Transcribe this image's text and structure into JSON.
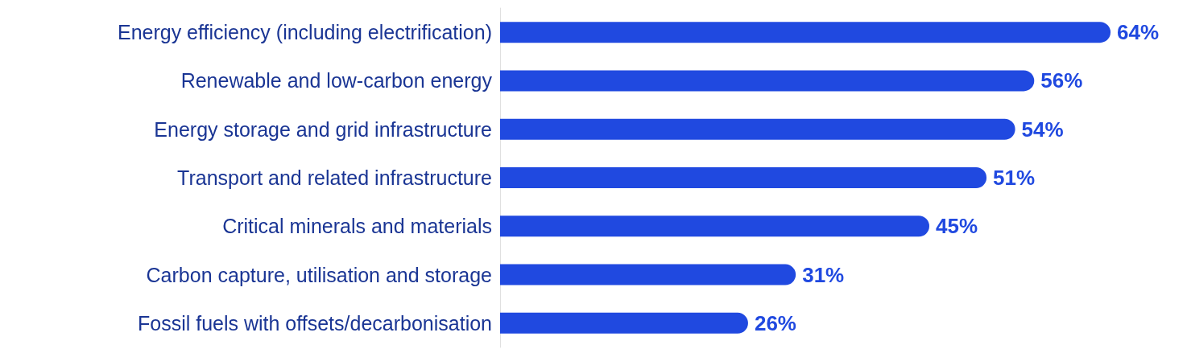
{
  "chart_data": {
    "type": "bar",
    "orientation": "horizontal",
    "categories": [
      "Energy efficiency (including electrification)",
      "Renewable and low-carbon energy",
      "Energy storage and grid infrastructure",
      "Transport and related infrastructure",
      "Critical minerals and materials",
      "Carbon capture, utilisation and storage",
      "Fossil fuels with offsets/decarbonisation"
    ],
    "values": [
      64,
      56,
      54,
      51,
      45,
      31,
      26
    ],
    "value_labels": [
      "64%",
      "56%",
      "54%",
      "51%",
      "45%",
      "31%",
      "26%"
    ],
    "color": "#2049e0"
  }
}
